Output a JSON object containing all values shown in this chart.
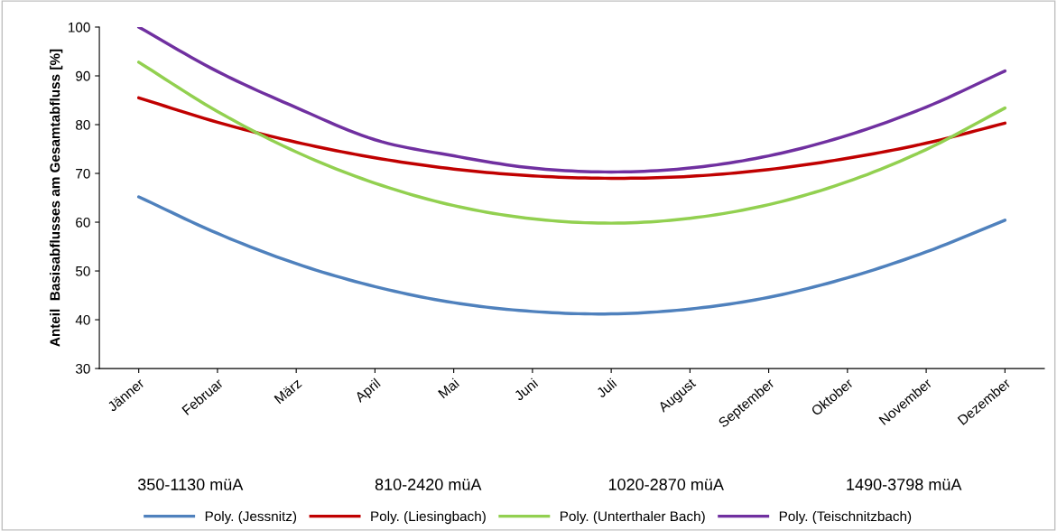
{
  "chart_data": {
    "type": "line",
    "ylabel": "Anteil  Basisabflusses am Gesamtabfluss [%]",
    "categories": [
      "Jänner",
      "Februar",
      "März",
      "April",
      "Mai",
      "Juni",
      "Juli",
      "August",
      "September",
      "Oktober",
      "November",
      "Dezember"
    ],
    "series": [
      {
        "name": "Poly. (Jessnitz)",
        "color": "#4f81bd",
        "values": [
          65.2,
          57.7,
          51.5,
          46.8,
          43.5,
          41.7,
          41.2,
          42.2,
          44.6,
          48.6,
          53.9,
          60.4
        ]
      },
      {
        "name": "Poly. (Liesingbach)",
        "color": "#c00000",
        "values": [
          85.5,
          80.5,
          76.4,
          73.2,
          70.9,
          69.5,
          69.0,
          69.4,
          70.8,
          73.1,
          76.2,
          80.3
        ]
      },
      {
        "name": "Poly. (Unterthaler Bach)",
        "color": "#92d050",
        "values": [
          92.8,
          82.7,
          74.4,
          68.0,
          63.4,
          60.7,
          59.8,
          60.8,
          63.6,
          68.3,
          74.9,
          83.4
        ]
      },
      {
        "name": "Poly. (Teischnitzbach)",
        "color": "#7030a0",
        "values": [
          100,
          90.9,
          83.5,
          76.9,
          73.6,
          71.1,
          70.3,
          71.1,
          73.6,
          77.8,
          83.6,
          91.0
        ]
      }
    ],
    "ylim": [
      30,
      100
    ],
    "yticks": [
      30,
      40,
      50,
      60,
      70,
      80,
      90,
      100
    ],
    "grid": false,
    "legend": "bottom",
    "marker": "none",
    "line_style": "solid",
    "annotations": [
      "350-1130 müA",
      "810-2420 müA",
      "1020-2870 müA",
      "1490-3798 müA"
    ]
  }
}
